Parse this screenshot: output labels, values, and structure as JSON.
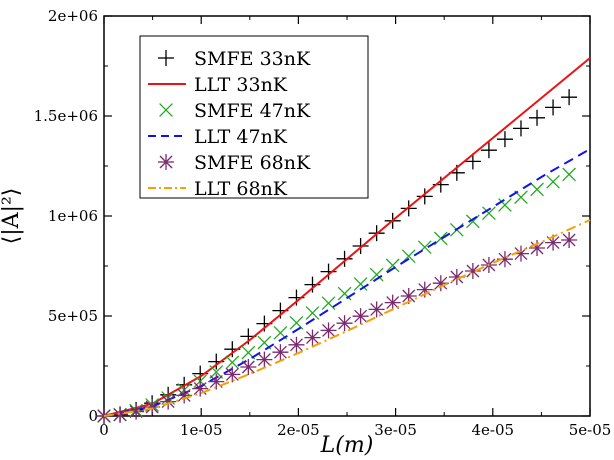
{
  "chart_data": {
    "type": "scatter",
    "title": "",
    "xlabel": "L(m)",
    "ylabel": "⟨|A|²⟩",
    "xlim": [
      0,
      5e-05
    ],
    "ylim": [
      0,
      2000000
    ],
    "grid": false,
    "legend_position": "top-left",
    "x_ticks": [
      0,
      1e-05,
      2e-05,
      3e-05,
      4e-05,
      5e-05
    ],
    "x_tick_labels": [
      "0",
      "1e-05",
      "2e-05",
      "3e-05",
      "4e-05",
      "5e-05"
    ],
    "y_ticks": [
      0,
      500000,
      1000000,
      1500000,
      2000000
    ],
    "y_tick_labels": [
      "0",
      "5e+05",
      "1e+06",
      "1.5e+06",
      "2e+06"
    ],
    "series": [
      {
        "name": "SMFE 33nK",
        "style": "markers",
        "marker": "plus",
        "color": "#000000",
        "x": [
          0,
          1.65e-06,
          3.3e-06,
          4.95e-06,
          6.6e-06,
          8.25e-06,
          9.9e-06,
          1.155e-05,
          1.32e-05,
          1.485e-05,
          1.65e-05,
          1.815e-05,
          1.98e-05,
          2.145e-05,
          2.31e-05,
          2.475e-05,
          2.64e-05,
          2.805e-05,
          2.97e-05,
          3.135e-05,
          3.3e-05,
          3.465e-05,
          3.63e-05,
          3.795e-05,
          3.96e-05,
          4.125e-05,
          4.29e-05,
          4.455e-05,
          4.62e-05,
          4.785e-05
        ],
        "y": [
          0,
          8000,
          30000,
          64000,
          106000,
          156000,
          212000,
          272000,
          334000,
          398000,
          462000,
          527000,
          592000,
          657000,
          722000,
          786000,
          850000,
          914000,
          976000,
          1038000,
          1098000,
          1157000,
          1216000,
          1273000,
          1329000,
          1384000,
          1438000,
          1491000,
          1543000,
          1594000
        ]
      },
      {
        "name": "LLT 33nK",
        "style": "solid",
        "color": "#ee1111",
        "x": [
          0,
          5e-06,
          1e-05,
          1.5e-05,
          2e-05,
          2.5e-05,
          3e-05,
          3.5e-05,
          4e-05,
          4.5e-05,
          5e-05
        ],
        "y": [
          0,
          62000,
          200000,
          380000,
          580000,
          785000,
          990000,
          1190000,
          1390000,
          1590000,
          1790000
        ]
      },
      {
        "name": "SMFE 47nK",
        "style": "markers",
        "marker": "x",
        "color": "#22aa22",
        "x": [
          0,
          1.65e-06,
          3.3e-06,
          4.95e-06,
          6.6e-06,
          8.25e-06,
          9.9e-06,
          1.155e-05,
          1.32e-05,
          1.485e-05,
          1.65e-05,
          1.815e-05,
          1.98e-05,
          2.145e-05,
          2.31e-05,
          2.475e-05,
          2.64e-05,
          2.805e-05,
          2.97e-05,
          3.135e-05,
          3.3e-05,
          3.465e-05,
          3.63e-05,
          3.795e-05,
          3.96e-05,
          4.125e-05,
          4.29e-05,
          4.455e-05,
          4.62e-05,
          4.785e-05
        ],
        "y": [
          0,
          7000,
          27000,
          55000,
          90000,
          130000,
          174000,
          220000,
          268000,
          317000,
          367000,
          416000,
          466000,
          515000,
          564000,
          612000,
          660000,
          707000,
          753000,
          799000,
          844000,
          888000,
          931000,
          973000,
          1014000,
          1055000,
          1094000,
          1133000,
          1171000,
          1208000
        ]
      },
      {
        "name": "LLT 47nK",
        "style": "dashed",
        "color": "#1111ee",
        "x": [
          0,
          5e-06,
          1e-05,
          1.5e-05,
          2e-05,
          2.5e-05,
          3e-05,
          3.5e-05,
          4e-05,
          4.5e-05,
          5e-05
        ],
        "y": [
          0,
          48000,
          150000,
          285000,
          435000,
          590000,
          745000,
          895000,
          1045000,
          1195000,
          1335000
        ]
      },
      {
        "name": "SMFE 68nK",
        "style": "markers",
        "marker": "star",
        "color": "#7a2a6e",
        "x": [
          0,
          1.65e-06,
          3.3e-06,
          4.95e-06,
          6.6e-06,
          8.25e-06,
          9.9e-06,
          1.155e-05,
          1.32e-05,
          1.485e-05,
          1.65e-05,
          1.815e-05,
          1.98e-05,
          2.145e-05,
          2.31e-05,
          2.475e-05,
          2.64e-05,
          2.805e-05,
          2.97e-05,
          3.135e-05,
          3.3e-05,
          3.465e-05,
          3.63e-05,
          3.795e-05,
          3.96e-05,
          4.125e-05,
          4.29e-05,
          4.455e-05,
          4.62e-05,
          4.785e-05
        ],
        "y": [
          0,
          6000,
          22000,
          45000,
          72000,
          103000,
          137000,
          172000,
          208000,
          245000,
          282000,
          319000,
          356000,
          392000,
          428000,
          464000,
          499000,
          533000,
          567000,
          600000,
          632000,
          664000,
          695000,
          725000,
          755000,
          784000,
          812000,
          840000,
          867000,
          880000
        ]
      },
      {
        "name": "LLT 68nK",
        "style": "dashdot",
        "color": "#f5a000",
        "x": [
          0,
          5e-06,
          1e-05,
          1.5e-05,
          2e-05,
          2.5e-05,
          3e-05,
          3.5e-05,
          4e-05,
          4.5e-05,
          5e-05
        ],
        "y": [
          0,
          38000,
          115000,
          210000,
          315000,
          425000,
          540000,
          655000,
          765000,
          870000,
          980000
        ]
      }
    ]
  }
}
